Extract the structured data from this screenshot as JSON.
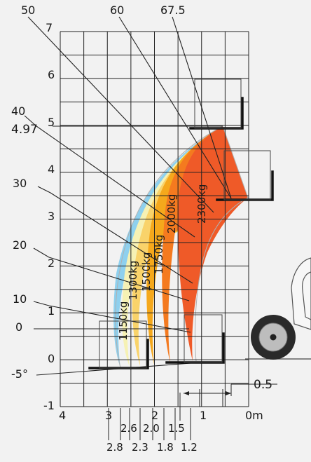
{
  "colors": {
    "background": "#f2f2f2",
    "grid": "#222222",
    "zone_1150": "#8ed0ee",
    "zone_1300": "#f6f1b4",
    "zone_1500": "#f9d36a",
    "zone_1750": "#f5a81c",
    "zone_2000": "#f47a1f",
    "zone_2300": "#ef5a28"
  },
  "grid": {
    "x_min": 0,
    "x_max": 4,
    "y_min": -1,
    "y_max": 7
  },
  "boom_angles": [
    "50",
    "60",
    "67.5",
    "40",
    "30",
    "20",
    "10",
    "0",
    "-5°"
  ],
  "max_height_label": "4.97",
  "y_axis_labels": [
    "7",
    "6",
    "5",
    "4",
    "3",
    "2",
    "1",
    "0",
    "-1"
  ],
  "x_axis_labels": [
    "4",
    "3",
    "2",
    "1",
    "0m"
  ],
  "outreach_upper": [
    "2.6",
    "2.0",
    "1.5"
  ],
  "outreach_lower": [
    "2.8",
    "2.3",
    "1.8",
    "1.2"
  ],
  "scale_label": "0.5",
  "load_zones": [
    {
      "label": "1150kg",
      "color": "#8ed0ee"
    },
    {
      "label": "1300kg",
      "color": "#f6f1b4"
    },
    {
      "label": "1500kg",
      "color": "#f9d36a"
    },
    {
      "label": "1750kg",
      "color": "#f5a81c"
    },
    {
      "label": "2000kg",
      "color": "#f47a1f"
    },
    {
      "label": "2300kg",
      "color": "#ef5a28"
    }
  ]
}
